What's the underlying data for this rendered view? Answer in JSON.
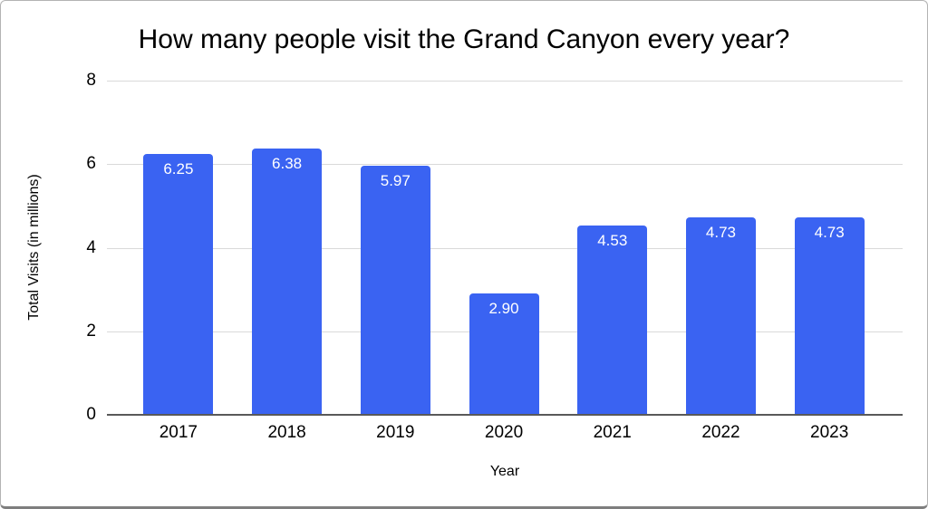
{
  "chart_data": {
    "type": "bar",
    "title": "How many people visit the Grand Canyon every year?",
    "xlabel": "Year",
    "ylabel": "Total Visits (in millions)",
    "categories": [
      "2017",
      "2018",
      "2019",
      "2020",
      "2021",
      "2022",
      "2023"
    ],
    "values": [
      6.25,
      6.38,
      5.97,
      2.9,
      4.53,
      4.73,
      4.73
    ],
    "data_labels": [
      "6.25",
      "6.38",
      "5.97",
      "2.90",
      "4.53",
      "4.73",
      "4.73"
    ],
    "ylim": [
      0,
      8
    ],
    "yticks": [
      0,
      2,
      4,
      6,
      8
    ],
    "grid": true,
    "legend": "none",
    "colors": {
      "bar": "#3a63f2",
      "data_label": "#ffffff",
      "gridline": "#d9d9d9",
      "axis_line": "#595959",
      "text": "#000000",
      "background": "#ffffff"
    }
  }
}
